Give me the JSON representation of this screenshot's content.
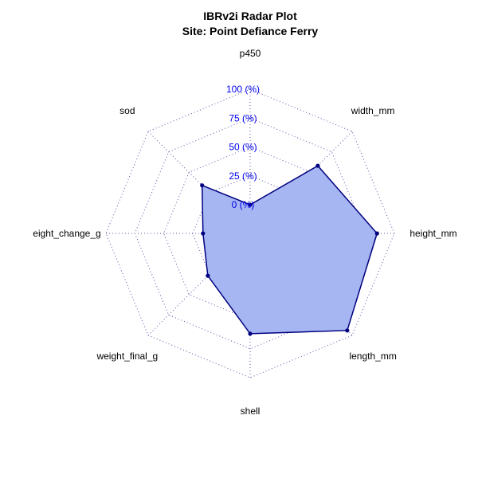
{
  "chart_data": {
    "type": "radar",
    "title": "IBRv2i Radar Plot",
    "subtitle": "Site: Point Defiance Ferry",
    "axes": [
      "p450",
      "width_mm",
      "height_mm",
      "length_mm",
      "shell",
      "weight_final_g",
      "eight_change_g",
      "sod"
    ],
    "tick_labels": [
      "0 (%)",
      "25 (%)",
      "50 (%)",
      "75 (%)",
      "100 (%)"
    ],
    "tick_values": [
      0,
      25,
      50,
      75,
      100
    ],
    "range": [
      0,
      100
    ],
    "series": [
      {
        "values": [
          0,
          58,
          85,
          94,
          62,
          27,
          16,
          34
        ]
      }
    ],
    "colors": {
      "fill": "#a6b6f2",
      "line": "#00007f",
      "grid": "#5555aa",
      "tick_text": "#0000ee"
    },
    "grid": true
  }
}
